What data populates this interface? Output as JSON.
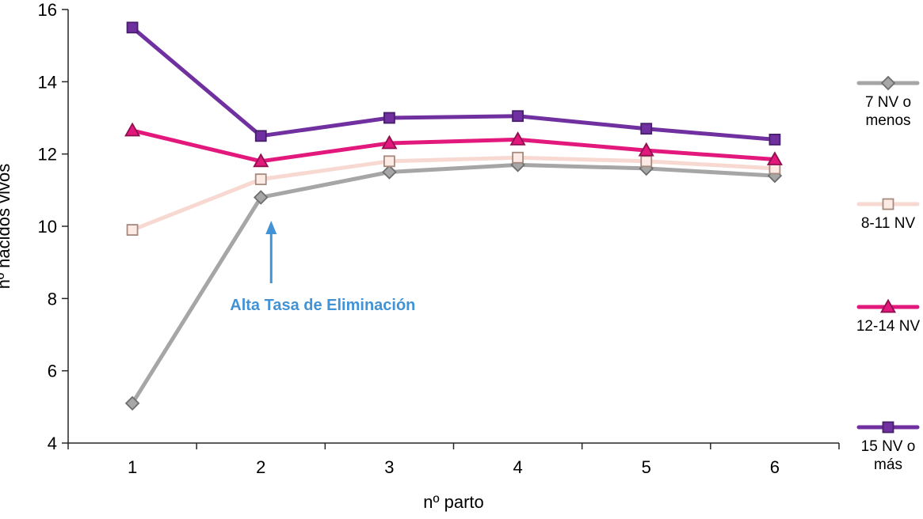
{
  "chart_data": {
    "type": "line",
    "title": "",
    "xlabel": "nº parto",
    "ylabel": "nº nacidos vivos",
    "x": [
      1,
      2,
      3,
      4,
      5,
      6
    ],
    "ylim": [
      4,
      16
    ],
    "ytick_step": 2,
    "grid": false,
    "legend_position": "right",
    "series": [
      {
        "name": "7 NV o menos",
        "legend_label": "7 NV o\nmenos",
        "values": [
          5.1,
          10.8,
          11.5,
          11.7,
          11.6,
          11.4
        ],
        "color": "#a6a6a6",
        "marker": "diamond",
        "marker_fill": "#a6a6a6",
        "marker_stroke": "#6e6e6e"
      },
      {
        "name": "8-11 NV",
        "legend_label": "8-11 NV",
        "values": [
          9.9,
          11.3,
          11.8,
          11.9,
          11.8,
          11.6
        ],
        "color": "#f7d9d2",
        "marker": "square",
        "marker_fill": "#fcebe4",
        "marker_stroke": "#a6897f"
      },
      {
        "name": "12-14 NV",
        "legend_label": "12-14 NV",
        "values": [
          12.65,
          11.8,
          12.3,
          12.4,
          12.1,
          11.85
        ],
        "color": "#e2187d",
        "marker": "triangle",
        "marker_fill": "#e2187d",
        "marker_stroke": "#8f0f4e"
      },
      {
        "name": "15 NV o más",
        "legend_label": "15 NV o\nmás",
        "values": [
          15.5,
          12.5,
          13.0,
          13.05,
          12.7,
          12.4
        ],
        "color": "#7030a0",
        "marker": "square",
        "marker_fill": "#7030a0",
        "marker_stroke": "#46206b"
      }
    ],
    "annotation": {
      "text": "Alta Tasa de Eliminación",
      "color": "#4292d6",
      "arrow_target_x": 2
    },
    "axis_color": "#262626"
  }
}
